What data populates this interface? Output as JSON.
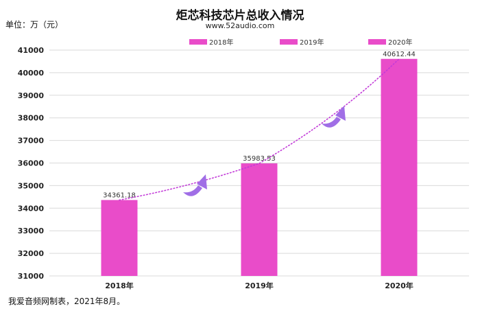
{
  "header": {
    "title": "炬芯科技芯片总收入情况",
    "subtitle": "www.52audio.com",
    "unit": "单位：万（元）"
  },
  "footer": {
    "note": "我爱音频网制表，2021年8月。"
  },
  "colors": {
    "bar": "#e94cc9",
    "trend": "#c23ad8",
    "arrow": "#a06ee6",
    "grid": "#d9d9d9"
  },
  "chart_data": {
    "type": "bar",
    "categories": [
      "2018年",
      "2019年",
      "2020年"
    ],
    "series": [
      {
        "name": "2018年",
        "values": [
          34361.18,
          null,
          null
        ]
      },
      {
        "name": "2019年",
        "values": [
          null,
          35983.53,
          null
        ]
      },
      {
        "name": "2020年",
        "values": [
          null,
          null,
          40612.44
        ]
      }
    ],
    "values": [
      34361.18,
      35983.53,
      40612.44
    ],
    "data_labels": [
      "34361.18",
      "35983.53",
      "40612.44"
    ],
    "yticks": [
      31000,
      32000,
      33000,
      34000,
      35000,
      36000,
      37000,
      38000,
      39000,
      40000,
      41000
    ],
    "ylim": [
      31000,
      41000
    ],
    "grid": true,
    "legend": "top",
    "trendline": "dotted",
    "title": "炬芯科技芯片总收入情况",
    "xlabel": "",
    "ylabel": "单位：万（元）"
  }
}
